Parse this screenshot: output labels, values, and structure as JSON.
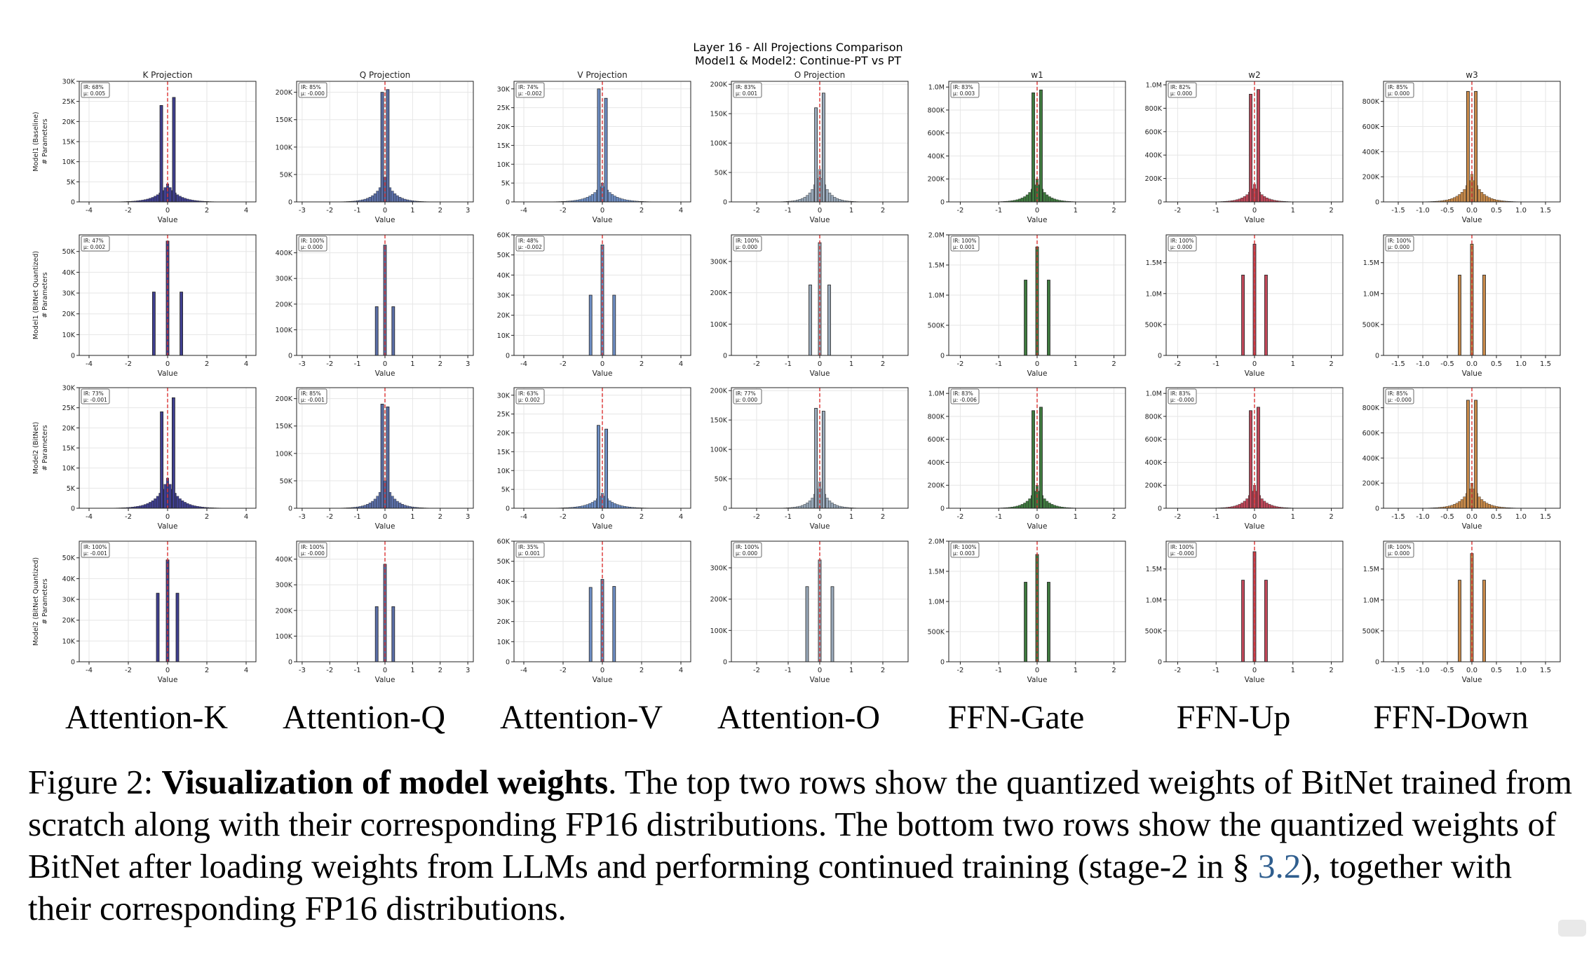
{
  "figure": {
    "title_line1": "Layer 16 - All Projections Comparison",
    "title_line2": "Model1 & Model2: Continue-PT vs PT",
    "column_labels": [
      "Attention-K",
      "Attention-Q",
      "Attention-V",
      "Attention-O",
      "FFN-Gate",
      "FFN-Up",
      "FFN-Down"
    ],
    "caption": {
      "prefix": "Figure 2: ",
      "bold": "Visualization of model weights",
      "text1": ". The top two rows show the quantized weights of BitNet trained from scratch along with their corresponding FP16 distributions. The bottom two rows show the quantized weights of BitNet after loading weights from LLMs and performing continued training (stage-2 in § ",
      "ref": "3.2",
      "text2": "), together with their corresponding FP16 distributions."
    }
  },
  "chart_data": {
    "type": "histogram-grid",
    "title": "Layer 16 - All Projections Comparison / Model1 & Model2: Continue-PT vs PT",
    "xlabel": "Value",
    "columns": [
      {
        "title": "K Projection",
        "color": "#3f3f8f",
        "xlim": [
          -4.5,
          4.5
        ],
        "xticks": [
          -4,
          -2,
          0,
          2,
          4
        ],
        "xtick_labels": [
          "-4",
          "-2",
          "0",
          "2",
          "4"
        ],
        "spread": 1.0
      },
      {
        "title": "Q Projection",
        "color": "#5b6fa8",
        "xlim": [
          -3.2,
          3.2
        ],
        "xticks": [
          -3,
          -2,
          -1,
          0,
          1,
          2,
          3
        ],
        "xtick_labels": [
          "-3",
          "-2",
          "-1",
          "0",
          "1",
          "2",
          "3"
        ],
        "spread": 0.6
      },
      {
        "title": "V Projection",
        "color": "#6e8ec4",
        "xlim": [
          -4.5,
          4.5
        ],
        "xticks": [
          -4,
          -2,
          0,
          2,
          4
        ],
        "xtick_labels": [
          "-4",
          "-2",
          "0",
          "2",
          "4"
        ],
        "spread": 1.0
      },
      {
        "title": "O Projection",
        "color": "#9aaabb",
        "xlim": [
          -2.8,
          2.8
        ],
        "xticks": [
          -2,
          -1,
          0,
          1,
          2
        ],
        "xtick_labels": [
          "-2",
          "-1",
          "0",
          "1",
          "2"
        ],
        "spread": 0.45
      },
      {
        "title": "w1",
        "color": "#3f7a3f",
        "xlim": [
          -2.3,
          2.3
        ],
        "xticks": [
          -2,
          -1,
          0,
          1,
          2
        ],
        "xtick_labels": [
          "-2",
          "-1",
          "0",
          "1",
          "2"
        ],
        "spread": 0.4
      },
      {
        "title": "w2",
        "color": "#c0485a",
        "xlim": [
          -2.3,
          2.3
        ],
        "xticks": [
          -2,
          -1,
          0,
          1,
          2
        ],
        "xtick_labels": [
          "-2",
          "-1",
          "0",
          "1",
          "2"
        ],
        "spread": 0.4
      },
      {
        "title": "w3",
        "color": "#c88a4a",
        "xlim": [
          -1.8,
          1.8
        ],
        "xticks": [
          -1.5,
          -1.0,
          -0.5,
          0,
          0.5,
          1.0,
          1.5
        ],
        "xtick_labels": [
          "-1.5",
          "-1.0",
          "-0.5",
          "0.0",
          "0.5",
          "1.0",
          "1.5"
        ],
        "spread": 0.35
      }
    ],
    "rows": [
      {
        "ylabel_line1": "Model1 (Baseline)",
        "ylabel_line2": "# Parameters",
        "kind": "fp16",
        "panels": [
          {
            "ir": "IR: 68%",
            "mu": "μ: 0.005",
            "ymax": 30000,
            "yticks": [
              0,
              5000,
              10000,
              15000,
              20000,
              25000,
              30000
            ],
            "ytick_labels": [
              "0",
              "5K",
              "10K",
              "15K",
              "20K",
              "25K",
              "30K"
            ],
            "peak_left": 24000,
            "peak_right": 26000,
            "center": 4500,
            "pos": 0.32
          },
          {
            "ir": "IR: 85%",
            "mu": "μ: -0.000",
            "ymax": 220000,
            "yticks": [
              0,
              50000,
              100000,
              150000,
              200000
            ],
            "ytick_labels": [
              "0",
              "50K",
              "100K",
              "150K",
              "200K"
            ],
            "peak_left": 200000,
            "peak_right": 205000,
            "center": 45000,
            "pos": 0.1
          },
          {
            "ir": "IR: 74%",
            "mu": "μ: -0.002",
            "ymax": 32000,
            "yticks": [
              0,
              5000,
              10000,
              15000,
              20000,
              25000,
              30000
            ],
            "ytick_labels": [
              "0",
              "5K",
              "10K",
              "15K",
              "20K",
              "25K",
              "30K"
            ],
            "peak_left": 30000,
            "peak_right": 27500,
            "center": 5000,
            "pos": 0.18
          },
          {
            "ir": "IR: 83%",
            "mu": "μ: 0.001",
            "ymax": 205000,
            "yticks": [
              0,
              50000,
              100000,
              150000,
              200000
            ],
            "ytick_labels": [
              "0",
              "50K",
              "100K",
              "150K",
              "200K"
            ],
            "peak_left": 160000,
            "peak_right": 185000,
            "center": 55000,
            "pos": 0.12
          },
          {
            "ir": "IR: 83%",
            "mu": "μ: 0.003",
            "ymax": 1050000,
            "yticks": [
              0,
              200000,
              400000,
              600000,
              800000,
              1000000
            ],
            "ytick_labels": [
              "0",
              "200K",
              "400K",
              "600K",
              "800K",
              "1.0M"
            ],
            "peak_left": 950000,
            "peak_right": 975000,
            "center": 200000,
            "pos": 0.1
          },
          {
            "ir": "IR: 82%",
            "mu": "μ: 0.000",
            "ymax": 1030000,
            "yticks": [
              0,
              200000,
              400000,
              600000,
              800000,
              1000000
            ],
            "ytick_labels": [
              "0",
              "200K",
              "400K",
              "600K",
              "800K",
              "1.0M"
            ],
            "peak_left": 920000,
            "peak_right": 960000,
            "center": 150000,
            "pos": 0.1
          },
          {
            "ir": "IR: 85%",
            "mu": "μ: 0.000",
            "ymax": 960000,
            "yticks": [
              0,
              200000,
              400000,
              600000,
              800000
            ],
            "ytick_labels": [
              "0",
              "200K",
              "400K",
              "600K",
              "800K"
            ],
            "peak_left": 880000,
            "peak_right": 880000,
            "center": 220000,
            "pos": 0.08
          }
        ]
      },
      {
        "ylabel_line1": "Model1 (BitNet Quantized)",
        "ylabel_line2": "# Parameters",
        "kind": "ternary",
        "panels": [
          {
            "ir": "IR: 47%",
            "mu": "μ: 0.002",
            "ymax": 58000,
            "yticks": [
              0,
              10000,
              20000,
              30000,
              40000,
              50000
            ],
            "ytick_labels": [
              "0",
              "10K",
              "20K",
              "30K",
              "40K",
              "50K"
            ],
            "values": [
              30500,
              55000,
              30500
            ],
            "pos": 0.7
          },
          {
            "ir": "IR: 100%",
            "mu": "μ: 0.000",
            "ymax": 470000,
            "yticks": [
              0,
              100000,
              200000,
              300000,
              400000
            ],
            "ytick_labels": [
              "0",
              "100K",
              "200K",
              "300K",
              "400K"
            ],
            "values": [
              190000,
              430000,
              190000
            ],
            "pos": 0.3
          },
          {
            "ir": "IR: 48%",
            "mu": "μ: -0.002",
            "ymax": 60000,
            "yticks": [
              0,
              10000,
              20000,
              30000,
              40000,
              50000,
              60000
            ],
            "ytick_labels": [
              "0",
              "10K",
              "20K",
              "30K",
              "40K",
              "50K",
              "60K"
            ],
            "values": [
              30000,
              55000,
              30000
            ],
            "pos": 0.6
          },
          {
            "ir": "IR: 100%",
            "mu": "μ: 0.000",
            "ymax": 385000,
            "yticks": [
              0,
              100000,
              200000,
              300000
            ],
            "ytick_labels": [
              "0",
              "100K",
              "200K",
              "300K"
            ],
            "values": [
              225000,
              360000,
              225000
            ],
            "pos": 0.3
          },
          {
            "ir": "IR: 100%",
            "mu": "μ: 0.001",
            "ymax": 2000000,
            "yticks": [
              0,
              500000,
              1000000,
              1500000,
              2000000
            ],
            "ytick_labels": [
              "0",
              "500K",
              "1.0M",
              "1.5M",
              "2.0M"
            ],
            "values": [
              1250000,
              1800000,
              1250000
            ],
            "pos": 0.3
          },
          {
            "ir": "IR: 100%",
            "mu": "μ: 0.000",
            "ymax": 1950000,
            "yticks": [
              0,
              500000,
              1000000,
              1500000
            ],
            "ytick_labels": [
              "0",
              "500K",
              "1.0M",
              "1.5M"
            ],
            "values": [
              1300000,
              1800000,
              1300000
            ],
            "pos": 0.3
          },
          {
            "ir": "IR: 100%",
            "mu": "μ: 0.000",
            "ymax": 1950000,
            "yticks": [
              0,
              500000,
              1000000,
              1500000
            ],
            "ytick_labels": [
              "0",
              "500K",
              "1.0M",
              "1.5M"
            ],
            "values": [
              1300000,
              1800000,
              1300000
            ],
            "pos": 0.25
          }
        ]
      },
      {
        "ylabel_line1": "Model2 (BitNet)",
        "ylabel_line2": "# Parameters",
        "kind": "fp16",
        "panels": [
          {
            "ir": "IR: 73%",
            "mu": "μ: -0.001",
            "ymax": 30000,
            "yticks": [
              0,
              5000,
              10000,
              15000,
              20000,
              25000,
              30000
            ],
            "ytick_labels": [
              "0",
              "5K",
              "10K",
              "15K",
              "20K",
              "25K",
              "30K"
            ],
            "peak_left": 24000,
            "peak_right": 27500,
            "center": 7500,
            "pos": 0.3
          },
          {
            "ir": "IR: 85%",
            "mu": "μ: -0.001",
            "ymax": 220000,
            "yticks": [
              0,
              50000,
              100000,
              150000,
              200000
            ],
            "ytick_labels": [
              "0",
              "50K",
              "100K",
              "150K",
              "200K"
            ],
            "peak_left": 190000,
            "peak_right": 185000,
            "center": 50000,
            "pos": 0.1
          },
          {
            "ir": "IR: 63%",
            "mu": "μ: 0.002",
            "ymax": 32000,
            "yticks": [
              0,
              5000,
              10000,
              15000,
              20000,
              25000,
              30000
            ],
            "ytick_labels": [
              "0",
              "5K",
              "10K",
              "15K",
              "20K",
              "25K",
              "30K"
            ],
            "peak_left": 22000,
            "peak_right": 21000,
            "center": 4000,
            "pos": 0.2
          },
          {
            "ir": "IR: 77%",
            "mu": "μ: 0.000",
            "ymax": 205000,
            "yticks": [
              0,
              50000,
              100000,
              150000,
              200000
            ],
            "ytick_labels": [
              "0",
              "50K",
              "100K",
              "150K",
              "200K"
            ],
            "peak_left": 170000,
            "peak_right": 165000,
            "center": 45000,
            "pos": 0.12
          },
          {
            "ir": "IR: 83%",
            "mu": "μ: -0.006",
            "ymax": 1050000,
            "yticks": [
              0,
              200000,
              400000,
              600000,
              800000,
              1000000
            ],
            "ytick_labels": [
              "0",
              "200K",
              "400K",
              "600K",
              "800K",
              "1.0M"
            ],
            "peak_left": 850000,
            "peak_right": 880000,
            "center": 200000,
            "pos": 0.1
          },
          {
            "ir": "IR: 83%",
            "mu": "μ: -0.000",
            "ymax": 1050000,
            "yticks": [
              0,
              200000,
              400000,
              600000,
              800000,
              1000000
            ],
            "ytick_labels": [
              "0",
              "200K",
              "400K",
              "600K",
              "800K",
              "1.0M"
            ],
            "peak_left": 850000,
            "peak_right": 880000,
            "center": 200000,
            "pos": 0.1
          },
          {
            "ir": "IR: 85%",
            "mu": "μ: -0.000",
            "ymax": 960000,
            "yticks": [
              0,
              200000,
              400000,
              600000,
              800000
            ],
            "ytick_labels": [
              "0",
              "200K",
              "400K",
              "600K",
              "800K"
            ],
            "peak_left": 860000,
            "peak_right": 860000,
            "center": 200000,
            "pos": 0.08
          }
        ]
      },
      {
        "ylabel_line1": "Model2 (BitNet Quantized)",
        "ylabel_line2": "# Parameters",
        "kind": "ternary",
        "panels": [
          {
            "ir": "IR: 100%",
            "mu": "μ: -0.001",
            "ymax": 58000,
            "yticks": [
              0,
              10000,
              20000,
              30000,
              40000,
              50000
            ],
            "ytick_labels": [
              "0",
              "10K",
              "20K",
              "30K",
              "40K",
              "50K"
            ],
            "values": [
              33000,
              49000,
              33000
            ],
            "pos": 0.5
          },
          {
            "ir": "IR: 100%",
            "mu": "μ: -0.000",
            "ymax": 470000,
            "yticks": [
              0,
              100000,
              200000,
              300000,
              400000
            ],
            "ytick_labels": [
              "0",
              "100K",
              "200K",
              "300K",
              "400K"
            ],
            "values": [
              215000,
              380000,
              215000
            ],
            "pos": 0.3
          },
          {
            "ir": "IR: 35%",
            "mu": "μ: 0.001",
            "ymax": 60000,
            "yticks": [
              0,
              10000,
              20000,
              30000,
              40000,
              50000,
              60000
            ],
            "ytick_labels": [
              "0",
              "10K",
              "20K",
              "30K",
              "40K",
              "50K",
              "60K"
            ],
            "values": [
              37000,
              41000,
              37500
            ],
            "pos": 0.6
          },
          {
            "ir": "IR: 100%",
            "mu": "μ: 0.000",
            "ymax": 385000,
            "yticks": [
              0,
              100000,
              200000,
              300000
            ],
            "ytick_labels": [
              "0",
              "100K",
              "200K",
              "300K"
            ],
            "values": [
              240000,
              325000,
              240000
            ],
            "pos": 0.4
          },
          {
            "ir": "IR: 100%",
            "mu": "μ: 0.003",
            "ymax": 2000000,
            "yticks": [
              0,
              500000,
              1000000,
              1500000,
              2000000
            ],
            "ytick_labels": [
              "0",
              "500K",
              "1.0M",
              "1.5M",
              "2.0M"
            ],
            "values": [
              1320000,
              1780000,
              1320000
            ],
            "pos": 0.3
          },
          {
            "ir": "IR: 100%",
            "mu": "μ: -0.000",
            "ymax": 1950000,
            "yticks": [
              0,
              500000,
              1000000,
              1500000
            ],
            "ytick_labels": [
              "0",
              "500K",
              "1.0M",
              "1.5M"
            ],
            "values": [
              1320000,
              1780000,
              1320000
            ],
            "pos": 0.3
          },
          {
            "ir": "IR: 100%",
            "mu": "μ: 0.000",
            "ymax": 1950000,
            "yticks": [
              0,
              500000,
              1000000,
              1500000
            ],
            "ytick_labels": [
              "0",
              "500K",
              "1.0M",
              "1.5M"
            ],
            "values": [
              1320000,
              1750000,
              1320000
            ],
            "pos": 0.25
          }
        ]
      }
    ]
  }
}
